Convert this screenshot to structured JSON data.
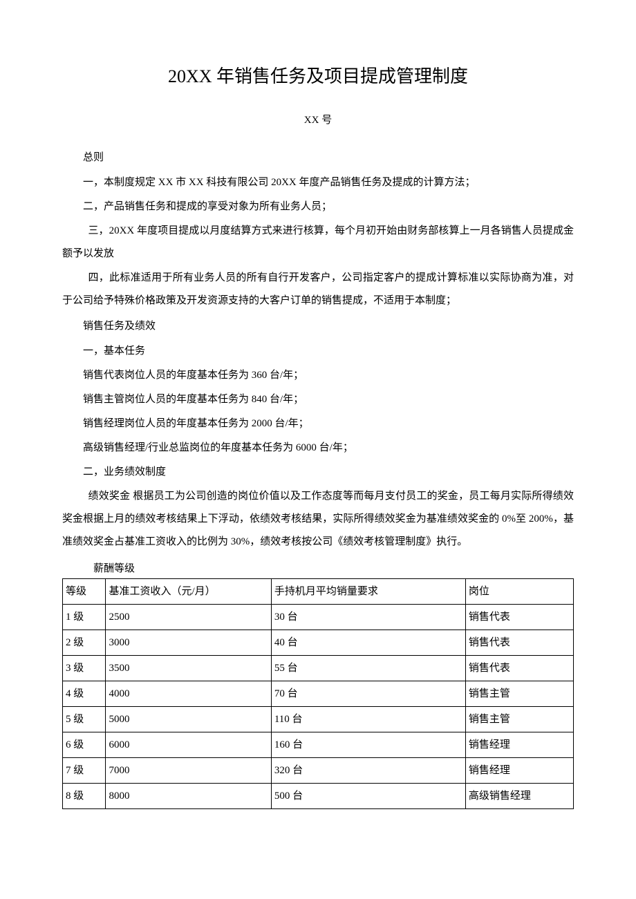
{
  "title": "20XX 年销售任务及项目提成管理制度",
  "subtitle": "XX 号",
  "general": {
    "header": "总则",
    "item1": "一，本制度规定 XX 市 XX 科技有限公司 20XX 年度产品销售任务及提成的计算方法；",
    "item2": "二，产品销售任务和提成的享受对象为所有业务人员；",
    "item3": "三，20XX 年度项目提成以月度结算方式来进行核算，每个月初开始由财务部核算上一月各销售人员提成金额予以发放",
    "item4": "四，此标准适用于所有业务人员的所有自行开发客户，公司指定客户的提成计算标准以实际协商为准，对于公司给予特殊价格政策及开发资源支持的大客户订单的销售提成，不适用于本制度；"
  },
  "sales": {
    "header": "销售任务及绩效",
    "basic_header": "一，基本任务",
    "task1": "销售代表岗位人员的年度基本任务为 360 台/年；",
    "task2": "销售主管岗位人员的年度基本任务为 840 台/年；",
    "task3": "销售经理岗位人员的年度基本任务为 2000 台/年；",
    "task4": "高级销售经理/行业总监岗位的年度基本任务为 6000 台/年；",
    "perf_header": "二，业务绩效制度",
    "perf_text": "绩效奖金 根据员工为公司创造的岗位价值以及工作态度等而每月支付员工的奖金，员工每月实际所得绩效奖金根据上月的绩效考核结果上下浮动，依绩效考核结果，实际所得绩效奖金为基准绩效奖金的 0%至 200%，基准绩效奖金占基准工资收入的比例为 30%，绩效考核按公司《绩效考核管理制度》执行。"
  },
  "table": {
    "caption": "薪酬等级",
    "headers": {
      "level": "等级",
      "salary": "基准工资收入（元/月）",
      "requirement": "手持机月平均销量要求",
      "position": "岗位"
    },
    "rows": [
      {
        "level": "1 级",
        "salary": "2500",
        "requirement": "30 台",
        "position": "销售代表"
      },
      {
        "level": "2 级",
        "salary": "3000",
        "requirement": "40 台",
        "position": "销售代表"
      },
      {
        "level": "3 级",
        "salary": "3500",
        "requirement": "55 台",
        "position": "销售代表"
      },
      {
        "level": "4 级",
        "salary": "4000",
        "requirement": "70 台",
        "position": "销售主管"
      },
      {
        "level": "5 级",
        "salary": "5000",
        "requirement": "110 台",
        "position": "销售主管"
      },
      {
        "level": "6 级",
        "salary": "6000",
        "requirement": "160 台",
        "position": "销售经理"
      },
      {
        "level": "7 级",
        "salary": "7000",
        "requirement": "320 台",
        "position": "销售经理"
      },
      {
        "level": "8 级",
        "salary": "8000",
        "requirement": "500 台",
        "position": "高级销售经理"
      }
    ]
  }
}
